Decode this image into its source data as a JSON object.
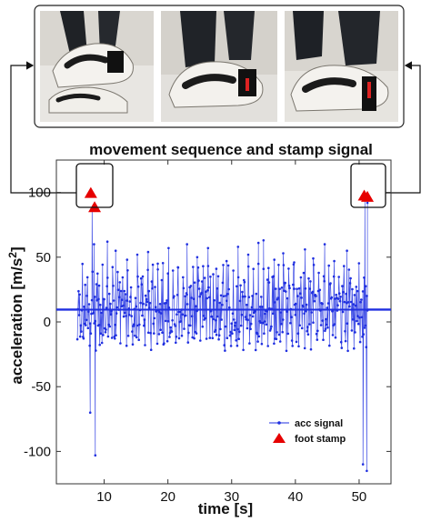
{
  "chart_data": {
    "type": "scatter",
    "title": "movement sequence and stamp signal",
    "xlabel": "time [s]",
    "ylabel_main": "acceleration [m/s",
    "ylabel_sup": "2",
    "ylabel_end": "]",
    "xlim": [
      2.5,
      55
    ],
    "ylim": [
      -125,
      125
    ],
    "xticks": [
      10,
      20,
      30,
      40,
      50
    ],
    "yticks": [
      -100,
      -50,
      0,
      50,
      100
    ],
    "baseline": 9.5,
    "grid": false,
    "legend_position": "bottom-right",
    "series": [
      {
        "name": "acc signal",
        "color": "#1f2fe0",
        "marker": "dot",
        "activity_start": 5.8,
        "activity_end": 51.3,
        "values": [
          [
            7.8,
            -70
          ],
          [
            8.1,
            88
          ],
          [
            8.4,
            60
          ],
          [
            8.6,
            -103
          ],
          [
            9.2,
            28
          ],
          [
            10.5,
            62
          ],
          [
            11.8,
            55
          ],
          [
            13.6,
            48
          ],
          [
            15.2,
            52
          ],
          [
            16.9,
            54
          ],
          [
            18.4,
            45
          ],
          [
            20.1,
            57
          ],
          [
            21.6,
            42
          ],
          [
            23.0,
            60
          ],
          [
            24.6,
            50
          ],
          [
            26.3,
            57
          ],
          [
            27.6,
            41
          ],
          [
            29.2,
            47
          ],
          [
            31.0,
            58
          ],
          [
            32.6,
            52
          ],
          [
            34.2,
            61
          ],
          [
            35.0,
            63
          ],
          [
            36.7,
            48
          ],
          [
            38.1,
            53
          ],
          [
            39.8,
            46
          ],
          [
            41.5,
            56
          ],
          [
            42.8,
            49
          ],
          [
            44.6,
            60
          ],
          [
            46.1,
            47
          ],
          [
            48.1,
            55
          ],
          [
            50.6,
            -110
          ],
          [
            50.9,
            95
          ],
          [
            51.2,
            -115
          ],
          [
            51.3,
            92
          ]
        ]
      },
      {
        "name": "foot stamp",
        "color": "#e60000",
        "marker": "triangle",
        "x": [
          7.9,
          8.5,
          50.8,
          51.3
        ],
        "y": [
          100,
          89,
          98,
          97
        ]
      }
    ]
  },
  "photos": {
    "icon": "shoe-stamp-photo",
    "count": 3
  }
}
